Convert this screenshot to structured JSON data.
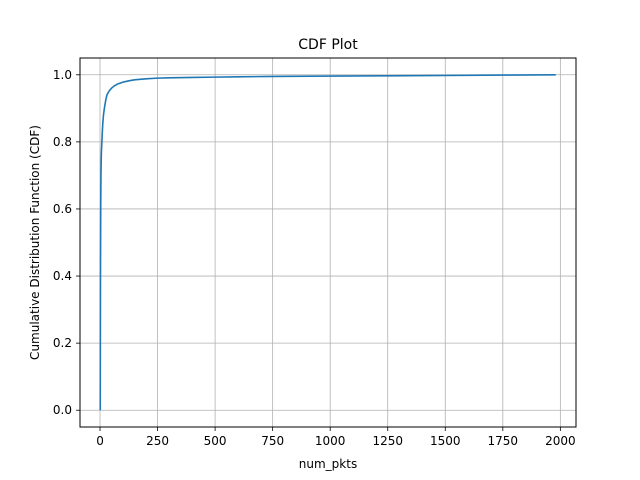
{
  "chart_data": {
    "type": "line",
    "title": "CDF Plot",
    "xlabel": "num_pkts",
    "ylabel": "Cumulative Distribution Function (CDF)",
    "xlim": [
      -87,
      2068
    ],
    "ylim": [
      -0.05,
      1.05
    ],
    "x_ticks": [
      0,
      250,
      500,
      750,
      1000,
      1250,
      1500,
      1750,
      2000
    ],
    "x_tick_labels": [
      "0",
      "250",
      "500",
      "750",
      "1000",
      "1250",
      "1500",
      "1750",
      "2000"
    ],
    "y_ticks": [
      0.0,
      0.2,
      0.4,
      0.6,
      0.8,
      1.0
    ],
    "y_tick_labels": [
      "0.0",
      "0.2",
      "0.4",
      "0.6",
      "0.8",
      "1.0"
    ],
    "grid": true,
    "line_color": "#1f77b4",
    "series": [
      {
        "x": [
          1,
          2,
          3,
          4,
          5,
          6,
          8,
          10,
          12,
          15,
          20,
          25,
          30,
          40,
          50,
          60,
          75,
          100,
          125,
          150,
          200,
          250,
          300,
          400,
          500,
          600,
          750,
          1000,
          1250,
          1500,
          1750,
          1980
        ],
        "y": [
          0.0,
          0.4,
          0.6,
          0.7,
          0.74,
          0.77,
          0.8,
          0.83,
          0.855,
          0.88,
          0.905,
          0.925,
          0.94,
          0.952,
          0.96,
          0.966,
          0.972,
          0.978,
          0.982,
          0.985,
          0.988,
          0.99,
          0.991,
          0.992,
          0.993,
          0.994,
          0.995,
          0.996,
          0.997,
          0.998,
          0.999,
          1.0
        ]
      }
    ]
  }
}
